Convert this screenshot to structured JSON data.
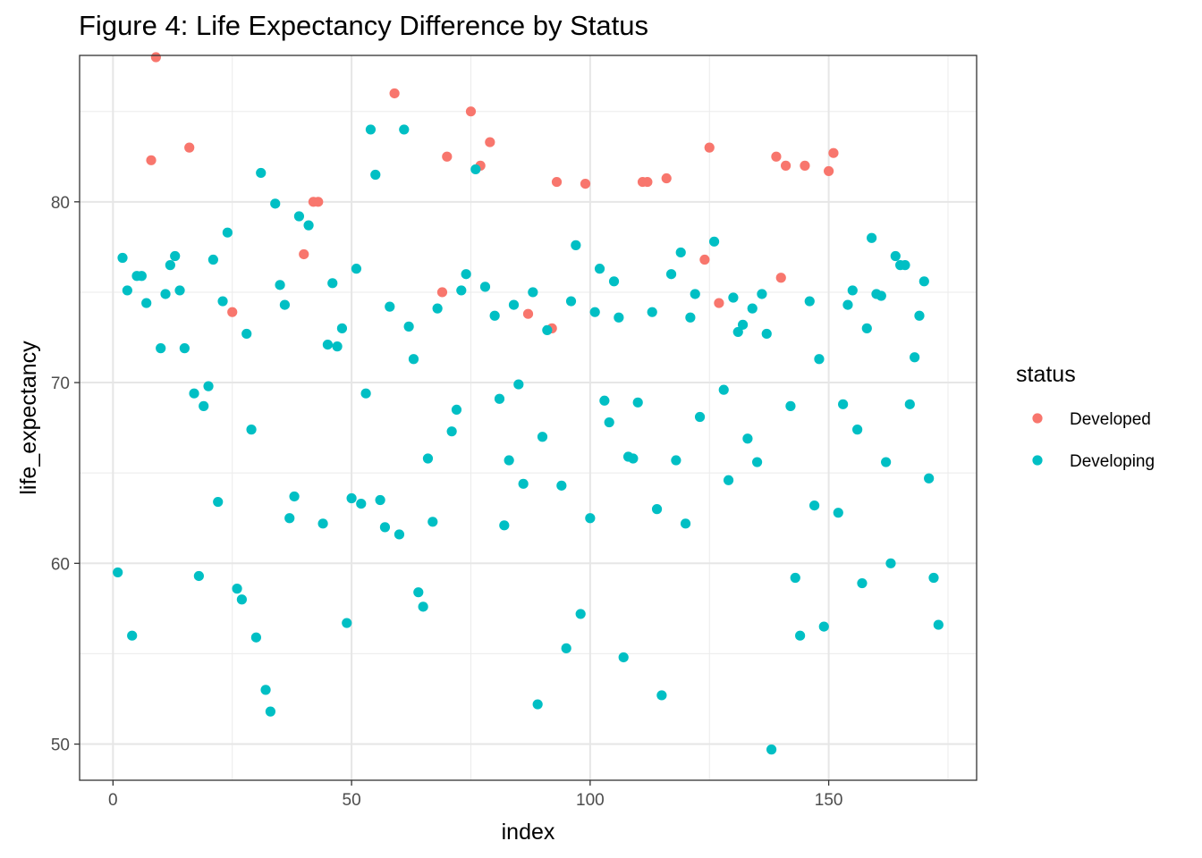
{
  "chart_data": {
    "type": "scatter",
    "title": "Figure 4: Life Expectancy Difference by Status",
    "xlabel": "index",
    "ylabel": "life_expectancy",
    "xlim": [
      -7,
      181
    ],
    "ylim": [
      48,
      88.1
    ],
    "x_ticks": [
      0,
      50,
      100,
      150
    ],
    "y_ticks": [
      50,
      60,
      70,
      80
    ],
    "x_tick_labels": [
      "0",
      "50",
      "100",
      "150"
    ],
    "y_tick_labels": [
      "50",
      "60",
      "70",
      "80"
    ],
    "grid": true,
    "legend": {
      "title": "status",
      "position": "right",
      "entries": [
        {
          "label": "Developed",
          "color": "#F8766D"
        },
        {
          "label": "Developing",
          "color": "#00BFC4"
        }
      ]
    },
    "series": [
      {
        "name": "Developed",
        "color": "#F8766D",
        "points": [
          [
            8,
            82.3
          ],
          [
            9,
            88.0
          ],
          [
            16,
            83.0
          ],
          [
            25,
            73.9
          ],
          [
            40,
            77.1
          ],
          [
            42,
            80.0
          ],
          [
            43,
            80.0
          ],
          [
            59,
            86.0
          ],
          [
            69,
            75.0
          ],
          [
            70,
            82.5
          ],
          [
            75,
            85.0
          ],
          [
            77,
            82.0
          ],
          [
            79,
            83.3
          ],
          [
            87,
            73.8
          ],
          [
            92,
            73.0
          ],
          [
            93,
            81.1
          ],
          [
            99,
            81.0
          ],
          [
            111,
            81.1
          ],
          [
            112,
            81.1
          ],
          [
            116,
            81.3
          ],
          [
            124,
            76.8
          ],
          [
            125,
            83.0
          ],
          [
            127,
            74.4
          ],
          [
            139,
            82.5
          ],
          [
            140,
            75.8
          ],
          [
            141,
            82.0
          ],
          [
            145,
            82.0
          ],
          [
            150,
            81.7
          ],
          [
            151,
            82.7
          ]
        ]
      },
      {
        "name": "Developing",
        "color": "#00BFC4",
        "points": [
          [
            1,
            59.5
          ],
          [
            2,
            76.9
          ],
          [
            3,
            75.1
          ],
          [
            4,
            56.0
          ],
          [
            5,
            75.9
          ],
          [
            6,
            75.9
          ],
          [
            7,
            74.4
          ],
          [
            10,
            71.9
          ],
          [
            11,
            74.9
          ],
          [
            12,
            76.5
          ],
          [
            13,
            77.0
          ],
          [
            14,
            75.1
          ],
          [
            15,
            71.9
          ],
          [
            17,
            69.4
          ],
          [
            18,
            59.3
          ],
          [
            19,
            68.7
          ],
          [
            20,
            69.8
          ],
          [
            21,
            76.8
          ],
          [
            22,
            63.4
          ],
          [
            23,
            74.5
          ],
          [
            24,
            78.3
          ],
          [
            26,
            58.6
          ],
          [
            27,
            58.0
          ],
          [
            28,
            72.7
          ],
          [
            29,
            67.4
          ],
          [
            30,
            55.9
          ],
          [
            31,
            81.6
          ],
          [
            32,
            53.0
          ],
          [
            33,
            51.8
          ],
          [
            34,
            79.9
          ],
          [
            35,
            75.4
          ],
          [
            36,
            74.3
          ],
          [
            37,
            62.5
          ],
          [
            38,
            63.7
          ],
          [
            39,
            79.2
          ],
          [
            41,
            78.7
          ],
          [
            44,
            62.2
          ],
          [
            45,
            72.1
          ],
          [
            46,
            75.5
          ],
          [
            47,
            72.0
          ],
          [
            48,
            73.0
          ],
          [
            49,
            56.7
          ],
          [
            50,
            63.6
          ],
          [
            51,
            76.3
          ],
          [
            52,
            63.3
          ],
          [
            53,
            69.4
          ],
          [
            54,
            84.0
          ],
          [
            55,
            81.5
          ],
          [
            56,
            63.5
          ],
          [
            57,
            62.0
          ],
          [
            58,
            74.2
          ],
          [
            60,
            61.6
          ],
          [
            61,
            84.0
          ],
          [
            62,
            73.1
          ],
          [
            63,
            71.3
          ],
          [
            64,
            58.4
          ],
          [
            65,
            57.6
          ],
          [
            66,
            65.8
          ],
          [
            67,
            62.3
          ],
          [
            68,
            74.1
          ],
          [
            71,
            67.3
          ],
          [
            72,
            68.5
          ],
          [
            73,
            75.1
          ],
          [
            74,
            76.0
          ],
          [
            76,
            81.8
          ],
          [
            78,
            75.3
          ],
          [
            80,
            73.7
          ],
          [
            81,
            69.1
          ],
          [
            82,
            62.1
          ],
          [
            83,
            65.7
          ],
          [
            84,
            74.3
          ],
          [
            85,
            69.9
          ],
          [
            86,
            64.4
          ],
          [
            88,
            75.0
          ],
          [
            89,
            52.2
          ],
          [
            90,
            67.0
          ],
          [
            91,
            72.9
          ],
          [
            94,
            64.3
          ],
          [
            95,
            55.3
          ],
          [
            96,
            74.5
          ],
          [
            97,
            77.6
          ],
          [
            98,
            57.2
          ],
          [
            100,
            62.5
          ],
          [
            101,
            73.9
          ],
          [
            102,
            76.3
          ],
          [
            103,
            69.0
          ],
          [
            104,
            67.8
          ],
          [
            105,
            75.6
          ],
          [
            106,
            73.6
          ],
          [
            107,
            54.8
          ],
          [
            108,
            65.9
          ],
          [
            109,
            65.8
          ],
          [
            110,
            68.9
          ],
          [
            113,
            73.9
          ],
          [
            114,
            63.0
          ],
          [
            115,
            52.7
          ],
          [
            117,
            76.0
          ],
          [
            118,
            65.7
          ],
          [
            119,
            77.2
          ],
          [
            120,
            62.2
          ],
          [
            121,
            73.6
          ],
          [
            122,
            74.9
          ],
          [
            123,
            68.1
          ],
          [
            126,
            77.8
          ],
          [
            128,
            69.6
          ],
          [
            129,
            64.6
          ],
          [
            130,
            74.7
          ],
          [
            131,
            72.8
          ],
          [
            132,
            73.2
          ],
          [
            133,
            66.9
          ],
          [
            134,
            74.1
          ],
          [
            135,
            65.6
          ],
          [
            136,
            74.9
          ],
          [
            137,
            72.7
          ],
          [
            138,
            49.7
          ],
          [
            142,
            68.7
          ],
          [
            143,
            59.2
          ],
          [
            144,
            56.0
          ],
          [
            146,
            74.5
          ],
          [
            147,
            63.2
          ],
          [
            148,
            71.3
          ],
          [
            149,
            56.5
          ],
          [
            152,
            62.8
          ],
          [
            153,
            68.8
          ],
          [
            154,
            74.3
          ],
          [
            155,
            75.1
          ],
          [
            156,
            67.4
          ],
          [
            157,
            58.9
          ],
          [
            158,
            73.0
          ],
          [
            159,
            78.0
          ],
          [
            160,
            74.9
          ],
          [
            161,
            74.8
          ],
          [
            162,
            65.6
          ],
          [
            163,
            60.0
          ],
          [
            164,
            77.0
          ],
          [
            165,
            76.5
          ],
          [
            166,
            76.5
          ],
          [
            167,
            68.8
          ],
          [
            168,
            71.4
          ],
          [
            169,
            73.7
          ],
          [
            170,
            75.6
          ],
          [
            171,
            64.7
          ],
          [
            172,
            59.2
          ],
          [
            173,
            56.6
          ]
        ]
      }
    ]
  }
}
